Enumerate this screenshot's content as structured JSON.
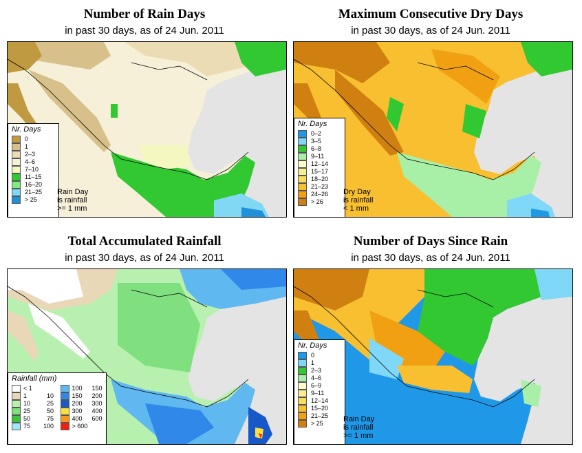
{
  "panels": [
    {
      "title": "Number of Rain Days",
      "subtitle": "in past 30 days, as of  24 Jun. 2011",
      "legend_title": "Nr. Days",
      "legend": [
        {
          "label": "0",
          "color": "#c09a40"
        },
        {
          "label": "1",
          "color": "#d8c08a"
        },
        {
          "label": "2–3",
          "color": "#ecdcb4"
        },
        {
          "label": "4–6",
          "color": "#f6f0d8"
        },
        {
          "label": "7–10",
          "color": "#f4f8c0"
        },
        {
          "label": "11–15",
          "color": "#32c832"
        },
        {
          "label": "16–20",
          "color": "#80ec80"
        },
        {
          "label": "21–25",
          "color": "#80d8f4"
        },
        {
          "label": "> 25",
          "color": "#2090d8"
        }
      ],
      "note": [
        "Rain Day",
        "is rainfall",
        ">= 1 mm"
      ]
    },
    {
      "title": "Maximum Consecutive Dry Days",
      "subtitle": "in past 30 days, as of  24 Jun. 2011",
      "legend_title": "Nr. Days",
      "legend": [
        {
          "label": "0–2",
          "color": "#2098e8"
        },
        {
          "label": "3–5",
          "color": "#80d8f8"
        },
        {
          "label": "6–8",
          "color": "#32c832"
        },
        {
          "label": "9–11",
          "color": "#a8f0a8"
        },
        {
          "label": "12–14",
          "color": "#fcfcc8"
        },
        {
          "label": "15–17",
          "color": "#f8f090"
        },
        {
          "label": "18–20",
          "color": "#f8dc60"
        },
        {
          "label": "21–23",
          "color": "#f8c030"
        },
        {
          "label": "24–26",
          "color": "#f0a010"
        },
        {
          "label": "> 26",
          "color": "#d08010"
        }
      ],
      "note": [
        "Dry Day",
        "is rainfall",
        "< 1 mm"
      ]
    },
    {
      "title": "Total Accumulated Rainfall",
      "subtitle": "in past 30 days, as of  24 Jun. 2011",
      "legend_title": "Rainfall (mm)",
      "legend_left": [
        {
          "low": "< 1",
          "high": "",
          "color": "#ffffff"
        },
        {
          "low": "1",
          "high": "10",
          "color": "#e8d8b8"
        },
        {
          "low": "10",
          "high": "25",
          "color": "#b8f0b0"
        },
        {
          "low": "25",
          "high": "50",
          "color": "#80e080"
        },
        {
          "low": "50",
          "high": "75",
          "color": "#40c040"
        },
        {
          "low": "75",
          "high": "100",
          "color": "#a0e8f8"
        }
      ],
      "legend_right": [
        {
          "low": "100",
          "high": "150",
          "color": "#60b8f0"
        },
        {
          "low": "150",
          "high": "200",
          "color": "#3088e8"
        },
        {
          "low": "200",
          "high": "300",
          "color": "#1858c8"
        },
        {
          "low": "300",
          "high": "400",
          "color": "#f8e040"
        },
        {
          "low": "400",
          "high": "600",
          "color": "#f89820"
        },
        {
          "low": "> 600",
          "high": "",
          "color": "#f02010"
        }
      ]
    },
    {
      "title": "Number of Days Since Rain",
      "subtitle": "in past 30 days, as of  24 Jun. 2011",
      "legend_title": "Nr. Days",
      "legend": [
        {
          "label": "0",
          "color": "#2098e8"
        },
        {
          "label": "1",
          "color": "#80d8f8"
        },
        {
          "label": "2–3",
          "color": "#32c832"
        },
        {
          "label": "4–6",
          "color": "#a8f0a8"
        },
        {
          "label": "6–9",
          "color": "#fcfcc8"
        },
        {
          "label": "9–11",
          "color": "#f8f090"
        },
        {
          "label": "12–14",
          "color": "#f8dc60"
        },
        {
          "label": "15–20",
          "color": "#f8c030"
        },
        {
          "label": "21–25",
          "color": "#f0a010"
        },
        {
          "label": "> 25",
          "color": "#d08010"
        }
      ],
      "note": [
        "Rain Day",
        "is rainfall",
        ">= 1 mm"
      ]
    }
  ],
  "palette": {
    "ocean": "#e4e4e4",
    "border": "#000000"
  }
}
